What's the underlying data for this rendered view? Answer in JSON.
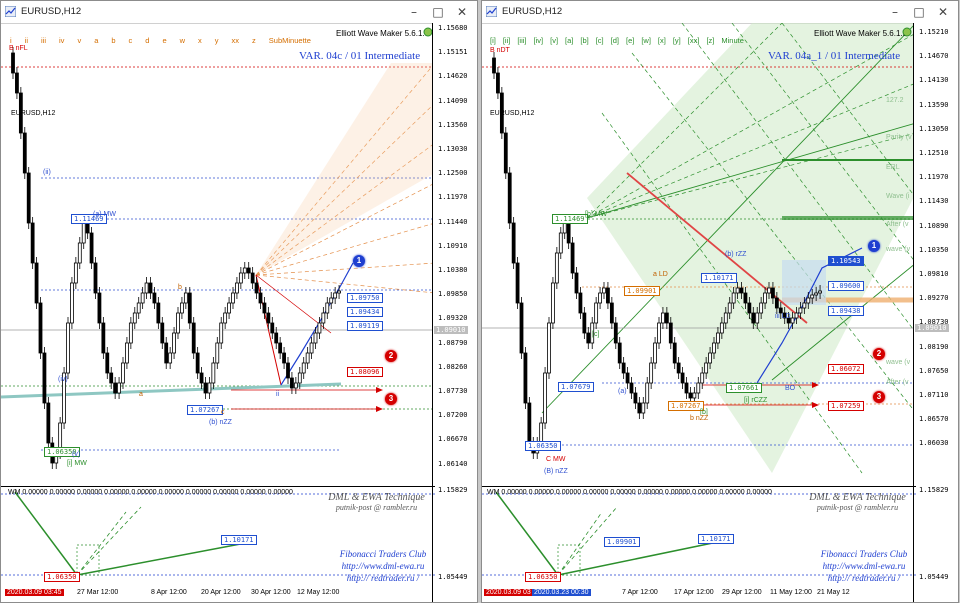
{
  "left": {
    "title": "EURUSD,H12",
    "symbol_label": "EURUSD,H12",
    "version": "Elliott Wave Maker 5.6.1.5",
    "var_label": "VAR. 04c  / 01 Intermediate",
    "wave_degrees": [
      "i",
      "ii",
      "iii",
      "iv",
      "v",
      "a",
      "b",
      "c",
      "d",
      "e",
      "w",
      "x",
      "y",
      "xx",
      "z"
    ],
    "submin_label": "SubMinuette",
    "corner_label": "B nFL",
    "price_labels": [
      "1.15680",
      "1.15151",
      "1.14620",
      "1.14090",
      "1.13560",
      "1.13030",
      "1.12500",
      "1.11970",
      "1.11440",
      "1.10910",
      "1.10380",
      "1.09850",
      "1.09320",
      "1.08790",
      "1.08260",
      "1.07730",
      "1.07200",
      "1.06670",
      "1.06140"
    ],
    "current_price": "1.09010",
    "sub_price_labels": [
      "1.15829",
      "1.05449"
    ],
    "time_labels": [
      "2020.03.09 03:45",
      "27 Mar 12:00",
      "8 Apr 12:00",
      "20 Apr 12:00",
      "30 Apr 12:00",
      "12 May 12:00"
    ],
    "tags": {
      "t1": "1.11469",
      "t2": "1.09750",
      "t3": "1.09434",
      "t4": "1.09119",
      "t5": "1.08096",
      "t6": "1.07267",
      "t7": "1.06350"
    },
    "wave_labels": {
      "a_mw": "(a) MW",
      "b_nzz": "(b) nZZ",
      "i_mw": "[i] MW",
      "v": "(v)",
      "ii": "(ii)",
      "iv": "(iv)",
      "b": "b",
      "a": "a",
      "c": "c",
      "ii_small": "ii"
    },
    "sub_window": {
      "indicator": "WM 0.00000 0.00000 0.00000 0.00000 0.00000 0.00000 0.00000 0.00000 0.00000 0.00000",
      "tag_high": "1.10171",
      "tag_low": "1.06350",
      "tech_line1": "DML & EWA Technique",
      "tech_line2": "putnik-post @ rambler.ru",
      "fib_line1": "Fibonacci   Traders   Club",
      "fib_line2": "http://www.dml-ewa.ru",
      "fib_line3": "http:// redtrader.ru /"
    },
    "circles": [
      "1",
      "2",
      "3"
    ]
  },
  "right": {
    "title": "EURUSD,H12",
    "symbol_label": "EURUSD,H12",
    "version": "Elliott Wave Maker 5.6.1.5",
    "var_label": "VAR. 04a_1  / 01 Intermediate",
    "wave_degrees": [
      "[i]",
      "[ii]",
      "[iii]",
      "[iv]",
      "[v]",
      "[a]",
      "[b]",
      "[c]",
      "[d]",
      "[e]",
      "[w]",
      "[x]",
      "[y]",
      "[xx]",
      "[z]"
    ],
    "minute_label": "Minute",
    "corner_label": "B nDT",
    "price_labels": [
      "1.15210",
      "1.14670",
      "1.14130",
      "1.13590",
      "1.13050",
      "1.12510",
      "1.11970",
      "1.11430",
      "1.10890",
      "1.10350",
      "1.09810",
      "1.09270",
      "1.08730",
      "1.08190",
      "1.07650",
      "1.07110",
      "1.06570",
      "1.06030"
    ],
    "current_price": "1.09010",
    "sub_price_labels": [
      "1.15829",
      "1.05449"
    ],
    "time_labels": [
      "2020.03.09 03",
      "2020.03.23 00:30",
      "7 Apr 12:00",
      "17 Apr 12:00",
      "29 Apr 12:00",
      "11 May 12:00",
      "21 May 12"
    ],
    "tags": {
      "t1": "1.11469",
      "t2": "1.10543",
      "t3": "1.10171",
      "t4": "1.09901",
      "t5": "1.09600",
      "t6": "1.09438",
      "t7": "1.07679",
      "t8": "1.07661",
      "t9": "1.07267",
      "t10": "1.06350",
      "t11": "1.06072",
      "t12": "1.07259"
    },
    "fib_right": [
      "127.2",
      "Parity (v",
      "ERL",
      "Wave (i",
      "After (v",
      "wave (v",
      "wave (v",
      "After (v"
    ],
    "wave_labels": {
      "b_mw": "[b] MW",
      "b_rzz": "(b) rZZ",
      "c_mw": "C MW",
      "b_nzz": "(B) nZZ",
      "ald": "a LD",
      "iii_ld": "iii LD",
      "ci": "[c]",
      "a_small": "(a)",
      "b_small": "[b]",
      "i_czz": "[i] rCZZ",
      "bnzz": "b nZZ",
      "bo": "BO"
    },
    "sub_window": {
      "indicator": "WM 0.00000 0.00000 0.00000 0.00000 0.00000 0.00000 0.00000 0.00000 0.00000 0.00000",
      "tag_high": "1.09901",
      "tag_mid": "1.10171",
      "tag_low": "1.06350",
      "tech_line1": "DML & EWA Technique",
      "tech_line2": "putnik-post @ rambler.ru",
      "fib_line1": "Fibonacci   Traders   Club",
      "fib_line2": "http://www.dml-ewa.ru",
      "fib_line3": "http:// redtrader.ru /"
    },
    "circles": [
      "1",
      "2",
      "3"
    ]
  },
  "colors": {
    "blue": "#1f3fd0",
    "red": "#d40000",
    "green": "#2c8f2c",
    "orange": "#d46e00",
    "teal": "#8ec7c2"
  },
  "icons": [
    "chart-app-icon",
    "minimize-icon",
    "maximize-icon",
    "close-icon",
    "chart-refresh-icon"
  ]
}
